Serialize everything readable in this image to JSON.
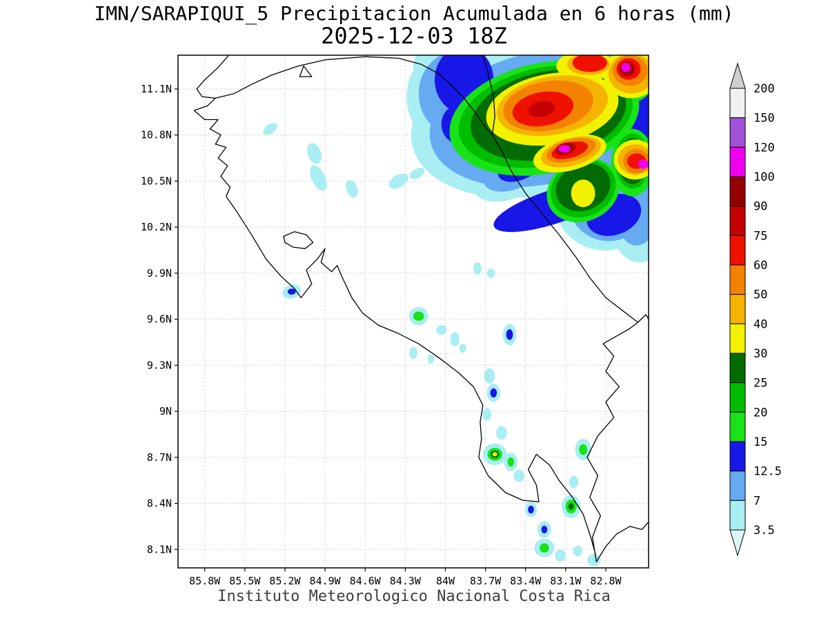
{
  "title": {
    "line1": "IMN/SARAPIQUI_5 Precipitacion Acumulada en 6 horas (mm)",
    "line2": "2025-12-03 18Z"
  },
  "footer": "Instituto Meteorologico Nacional Costa Rica",
  "map": {
    "bounds": {
      "lon_west": 86.0,
      "lon_east": 82.48,
      "lat_south": 7.98,
      "lat_north": 11.32
    },
    "lat_ticks": [
      {
        "label": "11.1N",
        "value": 11.1
      },
      {
        "label": "10.8N",
        "value": 10.8
      },
      {
        "label": "10.5N",
        "value": 10.5
      },
      {
        "label": "10.2N",
        "value": 10.2
      },
      {
        "label": "9.9N",
        "value": 9.9
      },
      {
        "label": "9.6N",
        "value": 9.6
      },
      {
        "label": "9.3N",
        "value": 9.3
      },
      {
        "label": "9N",
        "value": 9
      },
      {
        "label": "8.7N",
        "value": 8.7
      },
      {
        "label": "8.4N",
        "value": 8.4
      },
      {
        "label": "8.1N",
        "value": 8.1
      }
    ],
    "lon_ticks": [
      {
        "label": "85.8W",
        "value": 85.8
      },
      {
        "label": "85.5W",
        "value": 85.5
      },
      {
        "label": "85.2W",
        "value": 85.2
      },
      {
        "label": "84.9W",
        "value": 84.9
      },
      {
        "label": "84.6W",
        "value": 84.6
      },
      {
        "label": "84.3W",
        "value": 84.3
      },
      {
        "label": "84W",
        "value": 84
      },
      {
        "label": "83.7W",
        "value": 83.7
      },
      {
        "label": "83.4W",
        "value": 83.4
      },
      {
        "label": "83.1W",
        "value": 83.1
      },
      {
        "label": "82.8W",
        "value": 82.8
      }
    ],
    "coastlines": [
      [
        [
          85.62,
          11.32
        ],
        [
          85.7,
          11.24
        ],
        [
          85.8,
          11.16
        ],
        [
          85.86,
          11.1
        ],
        [
          85.82,
          11.05
        ],
        [
          85.72,
          11.04
        ],
        [
          85.78,
          10.99
        ],
        [
          85.88,
          10.96
        ],
        [
          85.8,
          10.9
        ],
        [
          85.7,
          10.9
        ],
        [
          85.76,
          10.84
        ],
        [
          85.68,
          10.8
        ],
        [
          85.72,
          10.74
        ],
        [
          85.64,
          10.72
        ],
        [
          85.7,
          10.65
        ],
        [
          85.63,
          10.6
        ],
        [
          85.68,
          10.53
        ],
        [
          85.61,
          10.46
        ],
        [
          85.64,
          10.4
        ],
        [
          85.56,
          10.3
        ],
        [
          85.45,
          10.15
        ],
        [
          85.34,
          9.99
        ],
        [
          85.23,
          9.88
        ],
        [
          85.13,
          9.8
        ],
        [
          85.08,
          9.74
        ],
        [
          85.0,
          9.83
        ],
        [
          85.04,
          9.92
        ],
        [
          84.96,
          9.99
        ],
        [
          84.9,
          10.06
        ],
        [
          84.93,
          9.97
        ],
        [
          84.85,
          9.91
        ],
        [
          84.81,
          9.95
        ],
        [
          84.77,
          9.87
        ],
        [
          84.7,
          9.74
        ],
        [
          84.62,
          9.64
        ],
        [
          84.5,
          9.56
        ],
        [
          84.36,
          9.51
        ],
        [
          84.2,
          9.44
        ],
        [
          84.05,
          9.35
        ],
        [
          83.9,
          9.25
        ],
        [
          83.79,
          9.16
        ],
        [
          83.72,
          9.04
        ],
        [
          83.74,
          8.93
        ],
        [
          83.73,
          8.82
        ],
        [
          83.75,
          8.7
        ],
        [
          83.68,
          8.58
        ],
        [
          83.55,
          8.47
        ],
        [
          83.42,
          8.42
        ],
        [
          83.3,
          8.41
        ],
        [
          83.32,
          8.52
        ],
        [
          83.38,
          8.62
        ],
        [
          83.32,
          8.72
        ],
        [
          83.22,
          8.65
        ],
        [
          83.15,
          8.55
        ],
        [
          83.05,
          8.44
        ],
        [
          82.97,
          8.33
        ],
        [
          82.92,
          8.2
        ],
        [
          82.88,
          8.08
        ],
        [
          82.87,
          8.02
        ],
        [
          82.9,
          8.18
        ],
        [
          82.84,
          8.32
        ],
        [
          82.92,
          8.44
        ],
        [
          82.86,
          8.58
        ],
        [
          82.94,
          8.7
        ],
        [
          82.86,
          8.84
        ],
        [
          82.74,
          8.96
        ],
        [
          82.8,
          9.06
        ],
        [
          82.7,
          9.16
        ],
        [
          82.8,
          9.26
        ],
        [
          82.74,
          9.36
        ],
        [
          82.82,
          9.44
        ],
        [
          82.7,
          9.5
        ],
        [
          82.62,
          9.54
        ],
        [
          82.56,
          9.58
        ],
        [
          82.68,
          9.66
        ],
        [
          82.8,
          9.74
        ],
        [
          82.92,
          9.87
        ],
        [
          83.02,
          10.0
        ],
        [
          83.14,
          10.14
        ],
        [
          83.27,
          10.28
        ],
        [
          83.4,
          10.42
        ],
        [
          83.51,
          10.57
        ],
        [
          83.58,
          10.7
        ],
        [
          83.65,
          10.8
        ],
        [
          83.7,
          10.85
        ],
        [
          83.78,
          10.95
        ],
        [
          83.86,
          11.04
        ],
        [
          83.95,
          11.12
        ],
        [
          84.05,
          11.2
        ],
        [
          84.18,
          11.26
        ],
        [
          84.35,
          11.3
        ],
        [
          84.6,
          11.31
        ],
        [
          84.9,
          11.29
        ],
        [
          85.1,
          11.25
        ],
        [
          85.3,
          11.19
        ],
        [
          85.45,
          11.13
        ],
        [
          85.58,
          11.07
        ],
        [
          85.72,
          11.04
        ]
      ],
      [
        [
          83.72,
          11.32
        ],
        [
          83.68,
          11.2
        ],
        [
          83.64,
          11.05
        ],
        [
          83.63,
          10.92
        ],
        [
          83.65,
          10.8
        ]
      ],
      [
        [
          85.21,
          10.14
        ],
        [
          85.13,
          10.17
        ],
        [
          85.04,
          10.15
        ],
        [
          84.99,
          10.1
        ],
        [
          85.05,
          10.06
        ],
        [
          85.14,
          10.07
        ],
        [
          85.2,
          10.1
        ],
        [
          85.21,
          10.14
        ]
      ],
      [
        [
          85.06,
          11.25
        ],
        [
          85.0,
          11.18
        ],
        [
          85.09,
          11.18
        ],
        [
          85.06,
          11.25
        ]
      ],
      [
        [
          82.87,
          8.02
        ],
        [
          82.8,
          8.12
        ],
        [
          82.72,
          8.2
        ],
        [
          82.62,
          8.25
        ],
        [
          82.53,
          8.23
        ],
        [
          82.48,
          8.28
        ]
      ],
      [
        [
          82.56,
          9.58
        ],
        [
          82.5,
          9.63
        ],
        [
          82.48,
          9.6
        ]
      ]
    ],
    "precip_blobs": [
      [
        83.31,
        10.91,
        0.96,
        0.5,
        -12,
        "3.5"
      ],
      [
        83.93,
        11.05,
        0.36,
        0.34,
        0,
        "3.5"
      ],
      [
        84.03,
        11.25,
        0.21,
        0.16,
        0,
        "3.5"
      ],
      [
        82.79,
        10.37,
        0.39,
        0.32,
        -20,
        "3.5"
      ],
      [
        82.58,
        10.33,
        0.23,
        0.32,
        0,
        "3.5"
      ],
      [
        82.55,
        10.15,
        0.18,
        0.18,
        0,
        "3.5"
      ],
      [
        83.51,
        10.55,
        0.31,
        0.16,
        -25,
        "3.5"
      ],
      [
        82.6,
        11.15,
        0.3,
        0.25,
        0,
        "3.5"
      ],
      [
        82.56,
        10.7,
        0.2,
        0.35,
        0,
        "3.5"
      ],
      [
        85.31,
        10.84,
        0.06,
        0.03,
        -35,
        "3.5"
      ],
      [
        84.98,
        10.68,
        0.05,
        0.07,
        -20,
        "3.5"
      ],
      [
        84.95,
        10.52,
        0.05,
        0.09,
        -25,
        "3.5"
      ],
      [
        84.7,
        10.45,
        0.04,
        0.06,
        -20,
        "3.5"
      ],
      [
        84.35,
        10.5,
        0.08,
        0.04,
        -30,
        "3.5"
      ],
      [
        84.21,
        10.55,
        0.06,
        0.03,
        -30,
        "3.5"
      ],
      [
        83.76,
        9.93,
        0.03,
        0.04,
        0,
        "3.5"
      ],
      [
        83.66,
        9.9,
        0.03,
        0.03,
        0,
        "3.5"
      ],
      [
        85.15,
        9.78,
        0.07,
        0.045,
        -20,
        "3.5"
      ],
      [
        84.2,
        9.62,
        0.07,
        0.06,
        0,
        "3.5"
      ],
      [
        84.03,
        9.53,
        0.04,
        0.03,
        -20,
        "3.5"
      ],
      [
        83.93,
        9.47,
        0.035,
        0.045,
        0,
        "3.5"
      ],
      [
        83.52,
        9.5,
        0.05,
        0.07,
        0,
        "3.5"
      ],
      [
        84.24,
        9.38,
        0.03,
        0.04,
        0,
        "3.5"
      ],
      [
        84.11,
        9.34,
        0.025,
        0.03,
        0,
        "3.5"
      ],
      [
        83.87,
        9.41,
        0.025,
        0.03,
        0,
        "3.5"
      ],
      [
        83.67,
        9.23,
        0.04,
        0.05,
        0,
        "3.5"
      ],
      [
        83.64,
        9.12,
        0.05,
        0.06,
        0,
        "3.5"
      ],
      [
        83.69,
        8.98,
        0.035,
        0.04,
        0,
        "3.5"
      ],
      [
        83.58,
        8.86,
        0.04,
        0.045,
        0,
        "3.5"
      ],
      [
        83.63,
        8.72,
        0.09,
        0.07,
        0,
        "3.5"
      ],
      [
        83.51,
        8.67,
        0.05,
        0.06,
        0,
        "3.5"
      ],
      [
        83.45,
        8.58,
        0.04,
        0.04,
        0,
        "3.5"
      ],
      [
        82.97,
        8.75,
        0.06,
        0.07,
        0,
        "3.5"
      ],
      [
        83.04,
        8.54,
        0.035,
        0.04,
        0,
        "3.5"
      ],
      [
        83.06,
        8.38,
        0.07,
        0.075,
        0,
        "3.5"
      ],
      [
        83.36,
        8.36,
        0.045,
        0.05,
        0,
        "3.5"
      ],
      [
        83.26,
        8.23,
        0.05,
        0.055,
        0,
        "3.5"
      ],
      [
        83.26,
        8.11,
        0.075,
        0.06,
        0,
        "3.5"
      ],
      [
        83.14,
        8.06,
        0.04,
        0.04,
        0,
        "3.5"
      ],
      [
        83.01,
        8.09,
        0.035,
        0.035,
        0,
        "3.5"
      ],
      [
        82.89,
        8.03,
        0.05,
        0.04,
        0,
        "3.5"
      ],
      [
        83.28,
        10.91,
        0.85,
        0.43,
        -12,
        "7"
      ],
      [
        83.9,
        11.07,
        0.3,
        0.28,
        0,
        "7"
      ],
      [
        82.77,
        10.37,
        0.31,
        0.26,
        -20,
        "7"
      ],
      [
        83.49,
        10.58,
        0.25,
        0.13,
        -25,
        "7"
      ],
      [
        82.57,
        10.2,
        0.12,
        0.12,
        0,
        "7"
      ],
      [
        82.6,
        11.15,
        0.24,
        0.2,
        0,
        "7"
      ],
      [
        82.56,
        10.68,
        0.15,
        0.28,
        0,
        "7"
      ],
      [
        83.86,
        11.16,
        0.22,
        0.22,
        0,
        "12.5"
      ],
      [
        83.89,
        10.87,
        0.14,
        0.13,
        0,
        "12.5"
      ],
      [
        82.56,
        10.96,
        0.11,
        0.34,
        5,
        "12.5"
      ],
      [
        83.2,
        10.33,
        0.46,
        0.11,
        -18,
        "12.5"
      ],
      [
        82.74,
        10.28,
        0.21,
        0.13,
        -20,
        "12.5"
      ],
      [
        83.44,
        10.6,
        0.18,
        0.09,
        -25,
        "12.5"
      ],
      [
        85.15,
        9.78,
        0.03,
        0.02,
        0,
        "12.5"
      ],
      [
        83.52,
        9.5,
        0.025,
        0.035,
        0,
        "12.5"
      ],
      [
        83.64,
        9.12,
        0.025,
        0.03,
        0,
        "12.5"
      ],
      [
        83.36,
        8.36,
        0.022,
        0.025,
        0,
        "12.5"
      ],
      [
        83.26,
        8.23,
        0.022,
        0.025,
        0,
        "12.5"
      ],
      [
        83.26,
        10.91,
        0.72,
        0.36,
        -12,
        "15"
      ],
      [
        82.97,
        10.44,
        0.28,
        0.2,
        -25,
        "15"
      ],
      [
        82.62,
        11.17,
        0.18,
        0.16,
        0,
        "15"
      ],
      [
        82.6,
        10.62,
        0.16,
        0.22,
        0,
        "15"
      ],
      [
        84.2,
        9.62,
        0.04,
        0.03,
        0,
        "15"
      ],
      [
        83.63,
        8.72,
        0.055,
        0.042,
        0,
        "15"
      ],
      [
        83.51,
        8.67,
        0.025,
        0.03,
        0,
        "15"
      ],
      [
        82.97,
        8.75,
        0.03,
        0.035,
        0,
        "15"
      ],
      [
        83.06,
        8.38,
        0.042,
        0.045,
        0,
        "15"
      ],
      [
        83.26,
        8.11,
        0.035,
        0.03,
        0,
        "15"
      ],
      [
        83.25,
        10.92,
        0.66,
        0.32,
        -12,
        "20"
      ],
      [
        82.97,
        10.45,
        0.25,
        0.18,
        -25,
        "20"
      ],
      [
        82.62,
        11.18,
        0.15,
        0.13,
        0,
        "20"
      ],
      [
        82.6,
        10.63,
        0.13,
        0.18,
        0,
        "20"
      ],
      [
        83.23,
        10.93,
        0.59,
        0.285,
        -12,
        "25"
      ],
      [
        82.97,
        10.46,
        0.21,
        0.15,
        -25,
        "25"
      ],
      [
        82.62,
        11.18,
        0.14,
        0.12,
        0,
        "25"
      ],
      [
        82.6,
        10.63,
        0.11,
        0.15,
        0,
        "25"
      ],
      [
        83.06,
        8.38,
        0.02,
        0.022,
        0,
        "25"
      ],
      [
        83.63,
        8.72,
        0.032,
        0.024,
        0,
        "25"
      ],
      [
        83.2,
        10.97,
        0.5,
        0.23,
        -10,
        "30"
      ],
      [
        83.07,
        10.68,
        0.28,
        0.11,
        -15,
        "30"
      ],
      [
        82.97,
        10.42,
        0.09,
        0.09,
        0,
        "30"
      ],
      [
        82.61,
        11.2,
        0.21,
        0.16,
        0,
        "30"
      ],
      [
        82.95,
        11.25,
        0.22,
        0.1,
        0,
        "30"
      ],
      [
        82.58,
        10.64,
        0.16,
        0.13,
        0,
        "30"
      ],
      [
        83.63,
        8.72,
        0.018,
        0.014,
        0,
        "30"
      ],
      [
        83.2,
        10.99,
        0.42,
        0.19,
        -10,
        "40"
      ],
      [
        83.06,
        10.69,
        0.23,
        0.09,
        -15,
        "40"
      ],
      [
        82.61,
        11.2,
        0.17,
        0.13,
        0,
        "40"
      ],
      [
        82.58,
        10.64,
        0.13,
        0.1,
        0,
        "40"
      ],
      [
        82.93,
        11.26,
        0.16,
        0.07,
        0,
        "40"
      ],
      [
        83.23,
        10.99,
        0.34,
        0.16,
        -10,
        "50"
      ],
      [
        83.06,
        10.7,
        0.19,
        0.07,
        -15,
        "50"
      ],
      [
        82.62,
        11.22,
        0.13,
        0.1,
        0,
        "50"
      ],
      [
        82.57,
        10.63,
        0.1,
        0.08,
        0,
        "50"
      ],
      [
        83.27,
        10.97,
        0.23,
        0.11,
        -10,
        "60"
      ],
      [
        83.07,
        10.7,
        0.14,
        0.05,
        -15,
        "60"
      ],
      [
        82.63,
        11.23,
        0.09,
        0.07,
        0,
        "60"
      ],
      [
        82.57,
        10.63,
        0.07,
        0.05,
        0,
        "60"
      ],
      [
        82.92,
        11.27,
        0.13,
        0.06,
        0,
        "60"
      ],
      [
        83.28,
        10.97,
        0.1,
        0.05,
        -10,
        "75"
      ],
      [
        83.1,
        10.71,
        0.08,
        0.04,
        -15,
        "75"
      ],
      [
        82.64,
        11.23,
        0.06,
        0.05,
        0,
        "75"
      ],
      [
        83.1,
        10.71,
        0.06,
        0.03,
        -15,
        "90"
      ],
      [
        82.64,
        11.23,
        0.045,
        0.035,
        0,
        "90"
      ],
      [
        83.11,
        10.71,
        0.045,
        0.025,
        0,
        "100"
      ],
      [
        82.65,
        11.24,
        0.035,
        0.03,
        0,
        "100"
      ],
      [
        82.52,
        10.61,
        0.04,
        0.03,
        0,
        "100"
      ]
    ]
  },
  "colorbar": {
    "unit": "mm",
    "labels": [
      "200",
      "150",
      "120",
      "100",
      "90",
      "75",
      "60",
      "50",
      "40",
      "30",
      "25",
      "20",
      "15",
      "12.5",
      "7",
      "3.5"
    ],
    "palette": {
      "3.5": "#a8eef2",
      "7": "#66aaf2",
      "12.5": "#1717e8",
      "15": "#17e317",
      "20": "#00bd00",
      "25": "#026b02",
      "30": "#f2f200",
      "40": "#f5b400",
      "50": "#f28200",
      "60": "#ee1100",
      "75": "#c40000",
      "90": "#940000",
      "100": "#ef00ef",
      "120": "#a052d8",
      "150": "#f2f2f2",
      "200": "#cfcfcf"
    },
    "below_min_color": "#d9f7f7"
  }
}
